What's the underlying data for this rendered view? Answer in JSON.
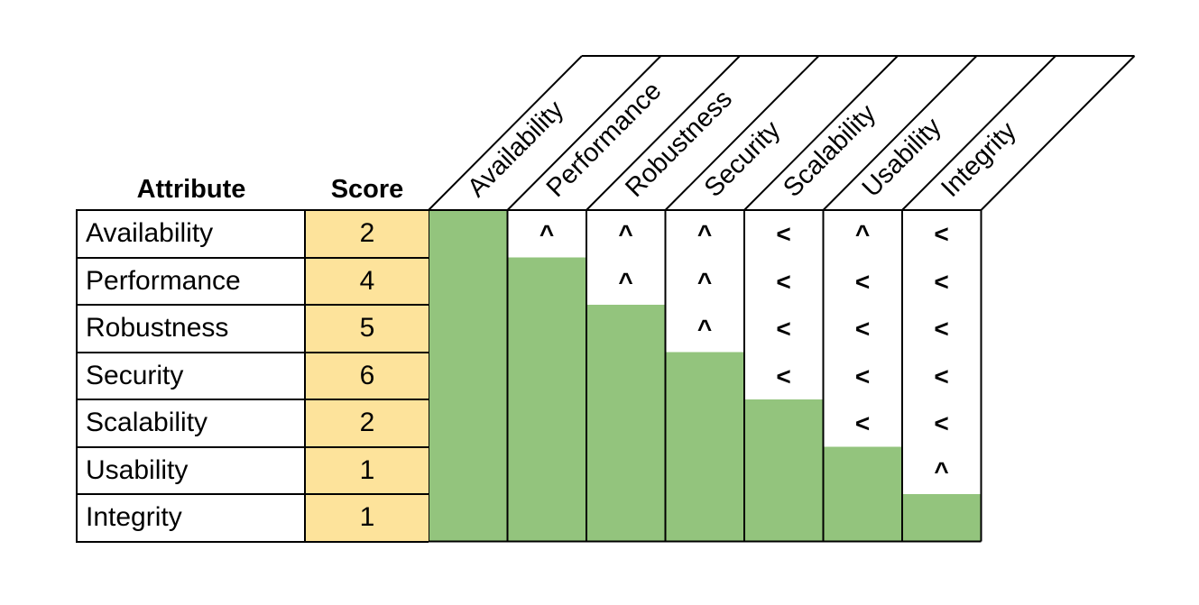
{
  "headers": {
    "attribute": "Attribute",
    "score": "Score"
  },
  "attributes": [
    "Availability",
    "Performance",
    "Robustness",
    "Security",
    "Scalability",
    "Usability",
    "Integrity"
  ],
  "scores": [
    "2",
    "4",
    "5",
    "6",
    "2",
    "1",
    "1"
  ],
  "comparisons": [
    [
      "",
      "^",
      "^",
      "^",
      "<",
      "^",
      "<"
    ],
    [
      "",
      "",
      "^",
      "^",
      "<",
      "<",
      "<"
    ],
    [
      "",
      "",
      "",
      "^",
      "<",
      "<",
      "<"
    ],
    [
      "",
      "",
      "",
      "",
      "<",
      "<",
      "<"
    ],
    [
      "",
      "",
      "",
      "",
      "",
      "<",
      "<"
    ],
    [
      "",
      "",
      "",
      "",
      "",
      "",
      "^"
    ],
    [
      "",
      "",
      "",
      "",
      "",
      "",
      ""
    ]
  ],
  "colors": {
    "score_fill": "#fde39b",
    "diagonal_fill": "#93c47d",
    "border": "#000000"
  },
  "icons": {
    "up": "caret-up",
    "left": "less-than"
  }
}
